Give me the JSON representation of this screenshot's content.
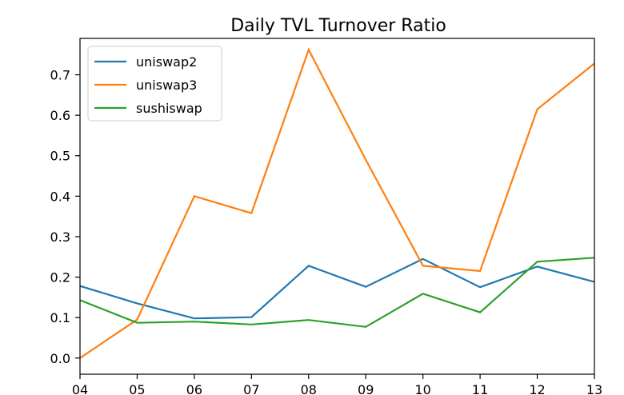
{
  "chart_data": {
    "type": "line",
    "title": "Daily TVL Turnover Ratio",
    "xlabel": "",
    "ylabel": "",
    "x": [
      "04",
      "05",
      "06",
      "07",
      "08",
      "09",
      "10",
      "11",
      "12",
      "13"
    ],
    "xlim": [
      0,
      9
    ],
    "yticks": [
      "0.0",
      "0.1",
      "0.2",
      "0.3",
      "0.4",
      "0.5",
      "0.6",
      "0.7"
    ],
    "ylim": [
      -0.04,
      0.79
    ],
    "grid": false,
    "legend_position": "upper-left",
    "series": [
      {
        "name": "uniswap2",
        "color": "#1f77b4",
        "values": [
          0.178,
          0.135,
          0.098,
          0.101,
          0.228,
          0.176,
          0.245,
          0.175,
          0.226,
          0.188
        ]
      },
      {
        "name": "uniswap3",
        "color": "#ff7f0e",
        "values": [
          0.0,
          0.095,
          0.4,
          0.358,
          0.762,
          0.49,
          0.228,
          0.215,
          0.615,
          0.728
        ]
      },
      {
        "name": "sushiswap",
        "color": "#2ca02c",
        "values": [
          0.143,
          0.087,
          0.09,
          0.083,
          0.094,
          0.077,
          0.159,
          0.113,
          0.238,
          0.248
        ]
      }
    ]
  }
}
